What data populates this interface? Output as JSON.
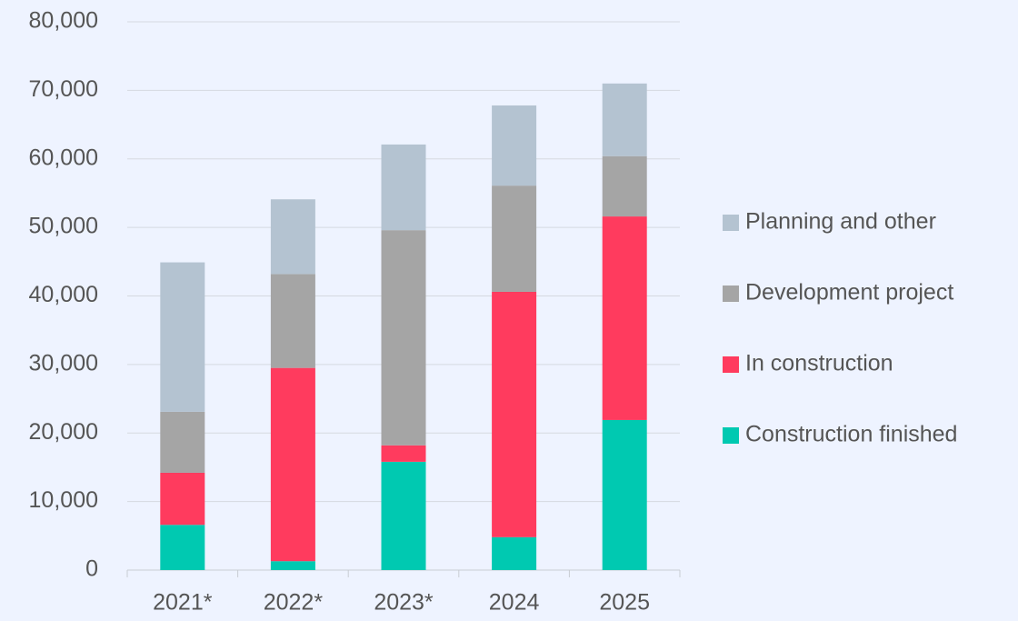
{
  "chart_data": {
    "type": "stacked_bar",
    "categories": [
      "2021*",
      "2022*",
      "2023*",
      "2024",
      "2025"
    ],
    "series": [
      {
        "name": "Construction finished",
        "color": "#00c9b1",
        "values": [
          6600,
          1300,
          15800,
          4800,
          21900
        ]
      },
      {
        "name": "In construction",
        "color": "#ff3b5e",
        "values": [
          7600,
          28200,
          2400,
          35800,
          29700
        ]
      },
      {
        "name": "Development project",
        "color": "#a5a5a5",
        "values": [
          8900,
          13700,
          31400,
          15500,
          8800
        ]
      },
      {
        "name": "Planning and other",
        "color": "#b4c3d1",
        "values": [
          21800,
          10900,
          12500,
          11700,
          10600
        ]
      }
    ],
    "ylim": [
      0,
      80000
    ],
    "yticks": [
      0,
      {
        "value": 10000,
        "label": "10,000"
      },
      {
        "value": 20000,
        "label": "20,000"
      },
      {
        "value": 30000,
        "label": "30,000"
      },
      {
        "value": 40000,
        "label": "40,000"
      },
      {
        "value": 50000,
        "label": "50,000"
      },
      {
        "value": 60000,
        "label": "60,000"
      },
      {
        "value": 70000,
        "label": "70,000"
      },
      {
        "value": 80000,
        "label": "80,000"
      }
    ],
    "grid": true,
    "legend": "right"
  }
}
